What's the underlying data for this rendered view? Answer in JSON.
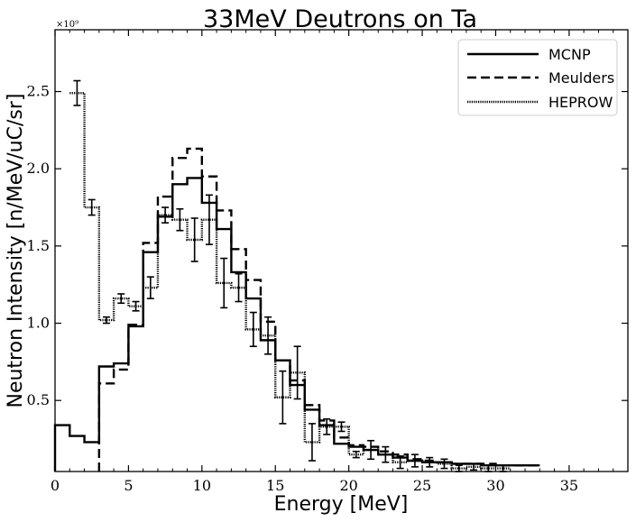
{
  "chart_data": {
    "type": "line",
    "step": true,
    "title": "33MeV Deutrons on Ta",
    "xlabel": "Energy [MeV]",
    "ylabel": "Neutron Intensity [n/MeV/uC/sr]",
    "y_multiplier": "×10⁹",
    "xlim": [
      0,
      39
    ],
    "ylim": [
      0.04,
      2.9
    ],
    "x_ticks": [
      0,
      5,
      10,
      15,
      20,
      25,
      30,
      35
    ],
    "x_tick_labels": [
      "0",
      "5",
      "10",
      "15",
      "20",
      "25",
      "30",
      "35"
    ],
    "y_ticks": [
      0.5,
      1.0,
      1.5,
      2.0,
      2.5
    ],
    "y_tick_labels": [
      "0.5",
      "1.0",
      "1.5",
      "2.0",
      "2.5"
    ],
    "legend_position": "top-right",
    "series": [
      {
        "name": "MCNP",
        "style": "solid",
        "edges": [
          0,
          1,
          2,
          3,
          4,
          5,
          6,
          7,
          8,
          9,
          10,
          11,
          12,
          13,
          14,
          15,
          16,
          17,
          18,
          19,
          20,
          21,
          22,
          23,
          24,
          25,
          26,
          27,
          28,
          29,
          30,
          31,
          32,
          33
        ],
        "values": [
          0.34,
          0.27,
          0.23,
          0.72,
          0.74,
          0.98,
          1.46,
          1.69,
          1.9,
          1.94,
          1.78,
          1.61,
          1.33,
          1.16,
          0.89,
          0.76,
          0.6,
          0.44,
          0.34,
          0.22,
          0.2,
          0.18,
          0.15,
          0.13,
          0.11,
          0.1,
          0.1,
          0.09,
          0.09,
          0.08,
          0.08,
          0.08,
          0.08
        ]
      },
      {
        "name": "Meulders",
        "style": "dashed",
        "edges": [
          3,
          4,
          5,
          6,
          7,
          8,
          9,
          10,
          11,
          12,
          13,
          14,
          15,
          16,
          17,
          18,
          19,
          20,
          21,
          22,
          23,
          24,
          25,
          26,
          27,
          28,
          29,
          30,
          31,
          32,
          33
        ],
        "values": [
          0.61,
          0.7,
          0.99,
          1.52,
          1.82,
          2.07,
          2.13,
          1.95,
          1.73,
          1.48,
          1.28,
          1.01,
          0.76,
          0.63,
          0.47,
          0.37,
          0.26,
          0.21,
          0.2,
          0.17,
          0.15,
          0.12,
          0.11,
          0.1,
          0.09,
          0.09,
          0.09,
          0.08,
          0.08,
          0.08
        ]
      },
      {
        "name": "HEPROW",
        "style": "dotted",
        "edges": [
          1,
          2,
          3,
          4,
          5,
          6,
          7,
          8,
          9,
          10,
          11,
          12,
          13,
          14,
          15,
          16,
          17,
          18,
          19,
          20,
          21,
          22,
          23,
          24,
          25,
          26,
          27,
          28,
          29,
          30,
          31
        ],
        "values": [
          2.49,
          1.75,
          1.02,
          1.16,
          1.11,
          1.23,
          1.7,
          1.67,
          1.54,
          1.67,
          1.26,
          1.23,
          0.96,
          0.92,
          0.52,
          0.68,
          0.23,
          0.33,
          0.33,
          0.15,
          0.18,
          0.15,
          0.1,
          0.11,
          0.1,
          0.09,
          0.06,
          0.07,
          0.06,
          0.06
        ],
        "errors": [
          0.08,
          0.05,
          0.02,
          0.03,
          0.03,
          0.07,
          0.05,
          0.07,
          0.14,
          0.16,
          0.16,
          0.09,
          0.11,
          0.12,
          0.17,
          0.17,
          0.12,
          0.05,
          0.03,
          0.02,
          0.06,
          0.05,
          0.04,
          0.04,
          0.03,
          0.03,
          0.02,
          0.02,
          0.02,
          0.02
        ]
      }
    ]
  }
}
